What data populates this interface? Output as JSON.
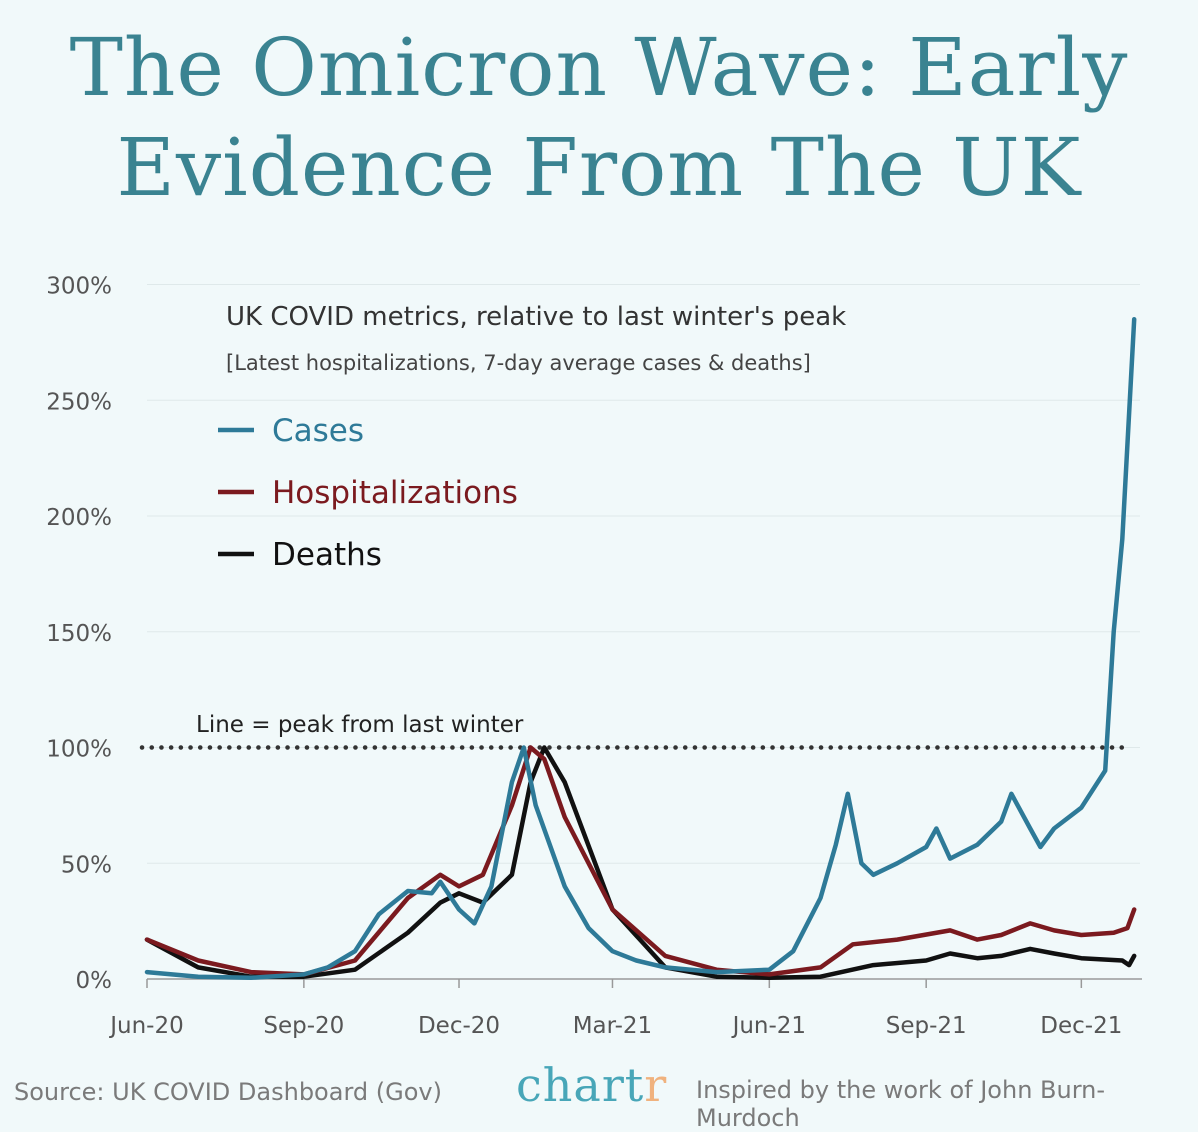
{
  "title": "The Omicron Wave: Early Evidence From The UK",
  "footer": {
    "source": "Source: UK COVID Dashboard (Gov)",
    "logo": "chartr",
    "credit": "Inspired by the work of John Burn-Murdoch"
  },
  "chart_data": {
    "type": "line",
    "title": "UK COVID metrics, relative to last winter's peak",
    "subtitle": "[Latest hospitalizations, 7-day average cases & deaths]",
    "ylim": [
      0,
      300
    ],
    "yticks": [
      0,
      50,
      100,
      150,
      200,
      250,
      300
    ],
    "ytick_labels": [
      "0%",
      "50%",
      "100%",
      "150%",
      "200%",
      "250%",
      "300%"
    ],
    "xticks": [
      "2020-06-01",
      "2020-09-01",
      "2020-12-01",
      "2021-03-01",
      "2021-06-01",
      "2021-09-01",
      "2021-12-01"
    ],
    "xtick_labels": [
      "Jun-20",
      "Sep-20",
      "Dec-20",
      "Mar-21",
      "Jun-21",
      "Sep-21",
      "Dec-21"
    ],
    "grid": "horizontal",
    "legend": "top-left",
    "reference_line": {
      "y": 100,
      "label": "Line = peak from last winter"
    },
    "series": [
      {
        "name": "Cases",
        "color": "#2e7a98",
        "points": [
          [
            "2020-06-01",
            3
          ],
          [
            "2020-07-01",
            1
          ],
          [
            "2020-08-01",
            0.5
          ],
          [
            "2020-09-01",
            2
          ],
          [
            "2020-09-15",
            5
          ],
          [
            "2020-10-01",
            12
          ],
          [
            "2020-10-15",
            28
          ],
          [
            "2020-11-01",
            38
          ],
          [
            "2020-11-15",
            37
          ],
          [
            "2020-11-20",
            42
          ],
          [
            "2020-12-01",
            30
          ],
          [
            "2020-12-10",
            24
          ],
          [
            "2020-12-20",
            40
          ],
          [
            "2021-01-01",
            85
          ],
          [
            "2021-01-08",
            100
          ],
          [
            "2021-01-15",
            75
          ],
          [
            "2021-02-01",
            40
          ],
          [
            "2021-02-15",
            22
          ],
          [
            "2021-03-01",
            12
          ],
          [
            "2021-03-15",
            8
          ],
          [
            "2021-04-01",
            5
          ],
          [
            "2021-05-01",
            3
          ],
          [
            "2021-06-01",
            4
          ],
          [
            "2021-06-15",
            12
          ],
          [
            "2021-07-01",
            35
          ],
          [
            "2021-07-10",
            58
          ],
          [
            "2021-07-17",
            80
          ],
          [
            "2021-07-25",
            50
          ],
          [
            "2021-08-01",
            45
          ],
          [
            "2021-08-15",
            50
          ],
          [
            "2021-09-01",
            57
          ],
          [
            "2021-09-07",
            65
          ],
          [
            "2021-09-15",
            52
          ],
          [
            "2021-10-01",
            58
          ],
          [
            "2021-10-15",
            68
          ],
          [
            "2021-10-21",
            80
          ],
          [
            "2021-11-01",
            65
          ],
          [
            "2021-11-07",
            57
          ],
          [
            "2021-11-15",
            65
          ],
          [
            "2021-12-01",
            74
          ],
          [
            "2021-12-15",
            90
          ],
          [
            "2021-12-20",
            150
          ],
          [
            "2021-12-25",
            190
          ],
          [
            "2022-01-01",
            285
          ]
        ]
      },
      {
        "name": "Hospitalizations",
        "color": "#7b1a1f",
        "points": [
          [
            "2020-06-01",
            17
          ],
          [
            "2020-07-01",
            8
          ],
          [
            "2020-08-01",
            3
          ],
          [
            "2020-09-01",
            2
          ],
          [
            "2020-10-01",
            8
          ],
          [
            "2020-11-01",
            35
          ],
          [
            "2020-11-20",
            45
          ],
          [
            "2020-12-01",
            40
          ],
          [
            "2020-12-15",
            45
          ],
          [
            "2021-01-01",
            75
          ],
          [
            "2021-01-12",
            100
          ],
          [
            "2021-01-20",
            95
          ],
          [
            "2021-02-01",
            70
          ],
          [
            "2021-03-01",
            30
          ],
          [
            "2021-04-01",
            10
          ],
          [
            "2021-05-01",
            4
          ],
          [
            "2021-06-01",
            2
          ],
          [
            "2021-07-01",
            5
          ],
          [
            "2021-07-20",
            15
          ],
          [
            "2021-08-15",
            17
          ],
          [
            "2021-09-15",
            21
          ],
          [
            "2021-10-01",
            17
          ],
          [
            "2021-10-15",
            19
          ],
          [
            "2021-11-01",
            24
          ],
          [
            "2021-11-15",
            21
          ],
          [
            "2021-12-01",
            19
          ],
          [
            "2021-12-20",
            20
          ],
          [
            "2021-12-28",
            22
          ],
          [
            "2022-01-01",
            30
          ]
        ]
      },
      {
        "name": "Deaths",
        "color": "#111111",
        "points": [
          [
            "2020-06-01",
            17
          ],
          [
            "2020-07-01",
            5
          ],
          [
            "2020-08-01",
            1
          ],
          [
            "2020-09-01",
            1
          ],
          [
            "2020-10-01",
            4
          ],
          [
            "2020-11-01",
            20
          ],
          [
            "2020-11-20",
            33
          ],
          [
            "2020-12-01",
            37
          ],
          [
            "2020-12-15",
            33
          ],
          [
            "2021-01-01",
            45
          ],
          [
            "2021-01-12",
            85
          ],
          [
            "2021-01-20",
            100
          ],
          [
            "2021-02-01",
            85
          ],
          [
            "2021-03-01",
            30
          ],
          [
            "2021-04-01",
            5
          ],
          [
            "2021-05-01",
            1
          ],
          [
            "2021-06-01",
            0.5
          ],
          [
            "2021-07-01",
            1
          ],
          [
            "2021-08-01",
            6
          ],
          [
            "2021-09-01",
            8
          ],
          [
            "2021-09-15",
            11
          ],
          [
            "2021-10-01",
            9
          ],
          [
            "2021-10-15",
            10
          ],
          [
            "2021-11-01",
            13
          ],
          [
            "2021-11-15",
            11
          ],
          [
            "2021-12-01",
            9
          ],
          [
            "2021-12-25",
            8
          ],
          [
            "2021-12-29",
            6
          ],
          [
            "2022-01-01",
            10
          ]
        ]
      }
    ]
  }
}
